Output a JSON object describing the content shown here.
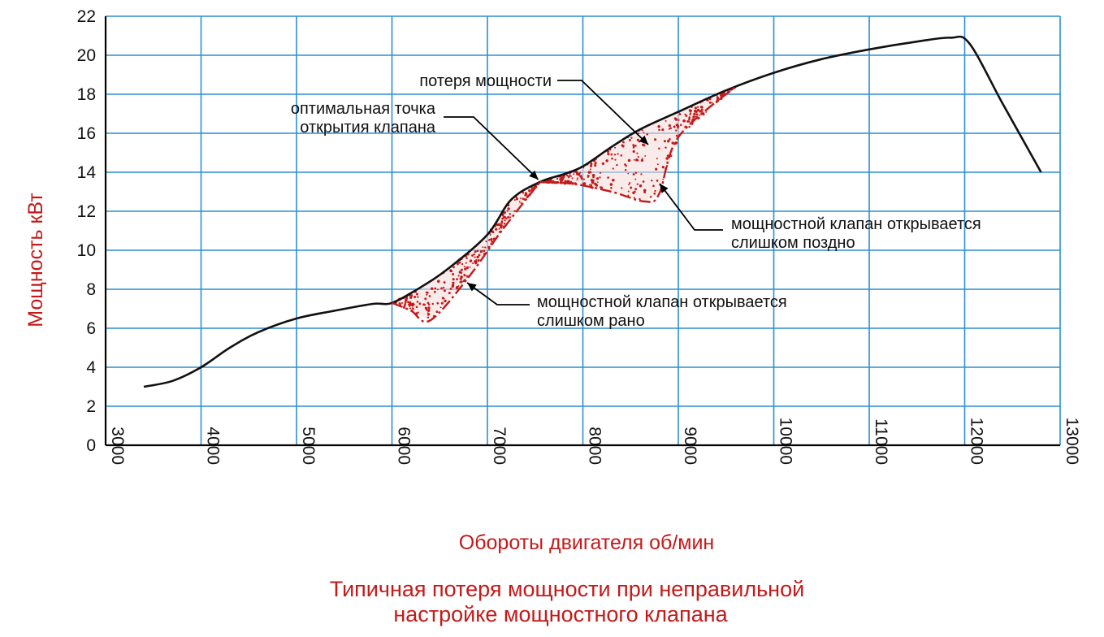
{
  "chart_data": {
    "type": "line",
    "xlabel": "Обороты двигателя об/мин",
    "ylabel": "Мощность кВт",
    "caption": [
      "Типичная потеря мощности при неправильной",
      "настройке мощностного клапана"
    ],
    "xlim": [
      3000,
      13000
    ],
    "ylim": [
      0,
      22
    ],
    "x_ticks": [
      "3000",
      "4000",
      "5000",
      "6000",
      "7000",
      "8000",
      "9000",
      "10000",
      "11000",
      "12000",
      "13000"
    ],
    "y_ticks": [
      "0",
      "2",
      "4",
      "6",
      "8",
      "10",
      "12",
      "14",
      "16",
      "18",
      "20",
      "22"
    ],
    "grid": true,
    "series": [
      {
        "points": [
          [
            3400,
            3.0
          ],
          [
            3700,
            3.3
          ],
          [
            4000,
            4.0
          ],
          [
            4300,
            5.0
          ],
          [
            4600,
            5.8
          ],
          [
            5000,
            6.5
          ],
          [
            5400,
            6.9
          ],
          [
            5800,
            7.25
          ],
          [
            6000,
            7.3
          ],
          [
            6300,
            8.1
          ],
          [
            6600,
            9.1
          ],
          [
            7000,
            10.8
          ],
          [
            7250,
            12.6
          ],
          [
            7550,
            13.5
          ],
          [
            7800,
            13.9
          ],
          [
            8000,
            14.3
          ],
          [
            8300,
            15.3
          ],
          [
            8600,
            16.2
          ],
          [
            9000,
            17.1
          ],
          [
            9500,
            18.2
          ],
          [
            10000,
            19.1
          ],
          [
            10500,
            19.8
          ],
          [
            11000,
            20.3
          ],
          [
            11500,
            20.7
          ],
          [
            11850,
            20.9
          ],
          [
            12050,
            20.6
          ],
          [
            12400,
            17.5
          ],
          [
            12800,
            14.0
          ]
        ]
      }
    ],
    "loss_curves": {
      "early": [
        [
          6000,
          7.3
        ],
        [
          6200,
          6.9
        ],
        [
          6400,
          6.4
        ],
        [
          6800,
          8.6
        ],
        [
          7150,
          11.0
        ],
        [
          7550,
          13.5
        ]
      ],
      "late": [
        [
          7550,
          13.5
        ],
        [
          7900,
          13.4
        ],
        [
          8300,
          13.0
        ],
        [
          8650,
          12.5
        ],
        [
          8800,
          12.9
        ],
        [
          9000,
          15.8
        ],
        [
          9600,
          18.4
        ]
      ]
    },
    "annotations": [
      {
        "lines": [
          "потеря мощности"
        ]
      },
      {
        "lines": [
          "оптимальная точка",
          "открытия клапана"
        ]
      },
      {
        "lines": [
          "мощностной клапан открывается",
          "слишком поздно"
        ]
      },
      {
        "lines": [
          "мощностной клапан открывается",
          "слишком рано"
        ]
      }
    ],
    "colors": {
      "grid": "#2d8fd0",
      "curve": "#111111",
      "loss": "#c41a1a",
      "label": "#c41a1a",
      "text": "#111111"
    }
  }
}
